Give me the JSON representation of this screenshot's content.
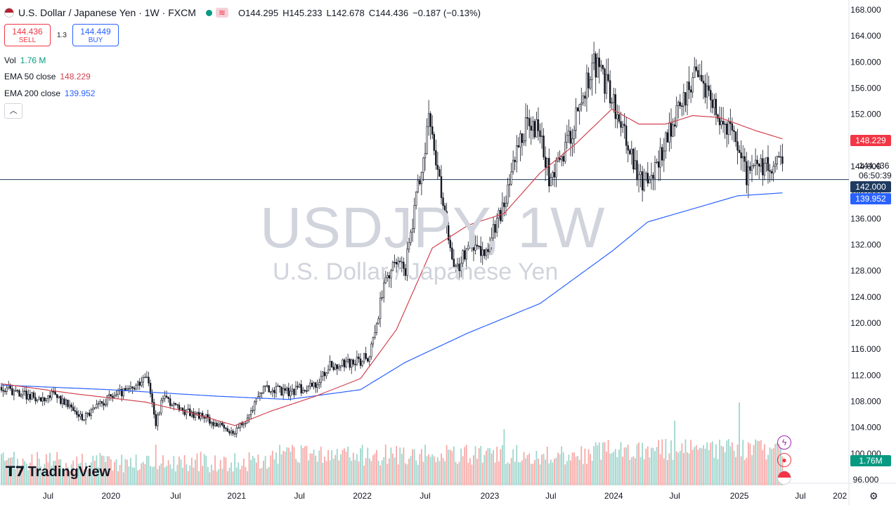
{
  "header": {
    "title": "U.S. Dollar / Japanese Yen · 1W · FXCM",
    "ohlc": [
      {
        "k": "O",
        "v": "144.295"
      },
      {
        "k": "H",
        "v": "145.233"
      },
      {
        "k": "L",
        "v": "142.678"
      },
      {
        "k": "C",
        "v": "144.436"
      }
    ],
    "change": "−0.187 (−0.13%)"
  },
  "trade": {
    "sell_price": "144.436",
    "sell_label": "SELL",
    "spread": "1.3",
    "buy_price": "144.449",
    "buy_label": "BUY"
  },
  "indicators": {
    "vol_label": "Vol",
    "vol_value": "1.76 M",
    "ema50_label": "EMA 50 close",
    "ema50_value": "148.229",
    "ema200_label": "EMA 200 close",
    "ema200_value": "139.952"
  },
  "watermark": {
    "symbol": "USDJPY, 1W",
    "name": "U.S. Dollar / Japanese Yen"
  },
  "brand": "TradingView",
  "price_labels": {
    "ema50": "148.229",
    "current": "144.436",
    "countdown": "06:50:39",
    "hline": "142.000",
    "ema200": "139.952",
    "volume": "1.76M"
  },
  "colors": {
    "up": "#089981",
    "down": "#f23645",
    "ema50": "#d1434f",
    "ema200": "#2962ff",
    "hline": "#1e3a5f",
    "vol_up": "#9ed6cd",
    "vol_down": "#f7a9a7"
  },
  "chart_data": {
    "type": "candlestick",
    "timeframe": "1W",
    "ylim": [
      96,
      168
    ],
    "y_ticks": [
      "168.000",
      "164.000",
      "160.000",
      "156.000",
      "152.000",
      "148.000",
      "144.000",
      "140.000",
      "136.000",
      "132.000",
      "128.000",
      "124.000",
      "120.000",
      "116.000",
      "112.000",
      "108.000",
      "104.000",
      "100.000",
      "96.000"
    ],
    "x_ticks": [
      "Jul",
      "2020",
      "Jul",
      "2021",
      "Jul",
      "2022",
      "Jul",
      "2023",
      "Jul",
      "2024",
      "Jul",
      "2025",
      "Jul",
      "202"
    ],
    "horizontal_line": 142.0,
    "anchors": [
      [
        0,
        110.2
      ],
      [
        20,
        108.5
      ],
      [
        30,
        109.0
      ],
      [
        45,
        105.5
      ],
      [
        62,
        109.0
      ],
      [
        74,
        110.0
      ],
      [
        82,
        111.5
      ],
      [
        86,
        104.5
      ],
      [
        90,
        109.0
      ],
      [
        100,
        106.5
      ],
      [
        112,
        105.8
      ],
      [
        122,
        104.2
      ],
      [
        128,
        103.2
      ],
      [
        136,
        104.8
      ],
      [
        145,
        110.0
      ],
      [
        160,
        109.5
      ],
      [
        175,
        110.5
      ],
      [
        183,
        113.5
      ],
      [
        196,
        113.7
      ],
      [
        205,
        115.0
      ],
      [
        215,
        128.0
      ],
      [
        225,
        128.5
      ],
      [
        238,
        150.5
      ],
      [
        245,
        140.0
      ],
      [
        252,
        127.8
      ],
      [
        262,
        132.5
      ],
      [
        270,
        131.0
      ],
      [
        280,
        138.5
      ],
      [
        292,
        150.5
      ],
      [
        300,
        149.5
      ],
      [
        306,
        141.0
      ],
      [
        318,
        150.0
      ],
      [
        330,
        160.0
      ],
      [
        338,
        156.0
      ],
      [
        344,
        150.5
      ],
      [
        350,
        146.5
      ],
      [
        355,
        141.5
      ],
      [
        362,
        142.5
      ],
      [
        373,
        150.0
      ],
      [
        385,
        157.5
      ],
      [
        395,
        155.5
      ],
      [
        400,
        151.5
      ],
      [
        410,
        148.0
      ],
      [
        415,
        142.5
      ],
      [
        420,
        143.5
      ],
      [
        428,
        144.0
      ],
      [
        435,
        144.436
      ]
    ],
    "ema50_points": [
      [
        0,
        110.7
      ],
      [
        40,
        109.2
      ],
      [
        80,
        107.9
      ],
      [
        105,
        106.3
      ],
      [
        130,
        104.3
      ],
      [
        150,
        106.5
      ],
      [
        175,
        108.8
      ],
      [
        200,
        111.5
      ],
      [
        220,
        119.0
      ],
      [
        240,
        131.5
      ],
      [
        260,
        135.0
      ],
      [
        280,
        136.8
      ],
      [
        300,
        143.0
      ],
      [
        320,
        147.5
      ],
      [
        340,
        152.8
      ],
      [
        355,
        150.5
      ],
      [
        370,
        150.5
      ],
      [
        385,
        151.8
      ],
      [
        400,
        151.5
      ],
      [
        420,
        149.5
      ],
      [
        435,
        148.229
      ]
    ],
    "ema200_points": [
      [
        0,
        110.5
      ],
      [
        60,
        109.8
      ],
      [
        120,
        108.8
      ],
      [
        160,
        108.3
      ],
      [
        200,
        109.8
      ],
      [
        225,
        114.0
      ],
      [
        260,
        118.5
      ],
      [
        300,
        123.0
      ],
      [
        340,
        131.0
      ],
      [
        360,
        135.5
      ],
      [
        385,
        137.5
      ],
      [
        410,
        139.5
      ],
      [
        435,
        139.952
      ]
    ],
    "volume_note": "weekly volume bars, last value 1.76M"
  }
}
